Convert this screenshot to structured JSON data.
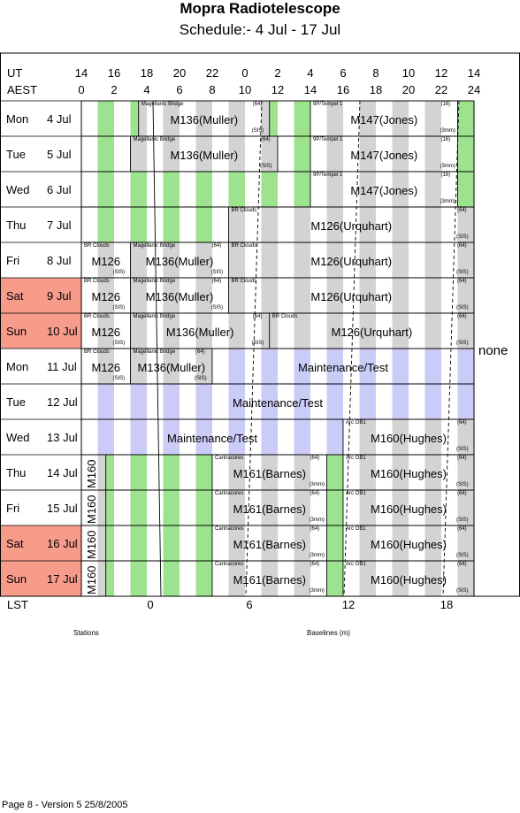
{
  "title": "Mopra Radiotelescope",
  "subtitle": "Schedule:- 4  Jul - 17 Jul",
  "ut_label": "UT",
  "aest_label": "AEST",
  "ut_ticks": [
    "14",
    "16",
    "18",
    "20",
    "22",
    "0",
    "2",
    "4",
    "6",
    "8",
    "10",
    "12",
    "14"
  ],
  "aest_ticks": [
    "0",
    "2",
    "4",
    "6",
    "8",
    "10",
    "12",
    "14",
    "16",
    "18",
    "20",
    "22",
    "24"
  ],
  "days": [
    {
      "name": "Mon",
      "date": "4  Jul",
      "weekend": false
    },
    {
      "name": "Tue",
      "date": "5  Jul",
      "weekend": false
    },
    {
      "name": "Wed",
      "date": "6  Jul",
      "weekend": false
    },
    {
      "name": "Thu",
      "date": "7  Jul",
      "weekend": false
    },
    {
      "name": "Fri",
      "date": "8  Jul",
      "weekend": false
    },
    {
      "name": "Sat",
      "date": "9  Jul",
      "weekend": true
    },
    {
      "name": "Sun",
      "date": "10 Jul",
      "weekend": true
    },
    {
      "name": "Mon",
      "date": "11 Jul",
      "weekend": false
    },
    {
      "name": "Tue",
      "date": "12 Jul",
      "weekend": false
    },
    {
      "name": "Wed",
      "date": "13 Jul",
      "weekend": false
    },
    {
      "name": "Thu",
      "date": "14 Jul",
      "weekend": false
    },
    {
      "name": "Fri",
      "date": "15 Jul",
      "weekend": false
    },
    {
      "name": "Sat",
      "date": "16 Jul",
      "weekend": true
    },
    {
      "name": "Sun",
      "date": "17 Jul",
      "weekend": true
    }
  ],
  "blocks": [
    {
      "row": 0,
      "start": 0,
      "end": 3.5,
      "type": "green",
      "label": "",
      "source": "",
      "tag": "",
      "rx": ""
    },
    {
      "row": 0,
      "start": 3.5,
      "end": 11.5,
      "type": "grey",
      "label": "M136(Muller)",
      "source": "Magellanic Bridge",
      "tag": "(64)",
      "rx": "(SIS)"
    },
    {
      "row": 0,
      "start": 11.5,
      "end": 14,
      "type": "green",
      "label": "",
      "source": "",
      "tag": "",
      "rx": ""
    },
    {
      "row": 0,
      "start": 14,
      "end": 23,
      "type": "grey",
      "label": "M147(Jones)",
      "source": "9P/Tempel 1",
      "tag": "(16)",
      "rx": "(3mm)"
    },
    {
      "row": 0,
      "start": 23,
      "end": 24,
      "type": "green",
      "label": "",
      "source": "",
      "tag": "",
      "rx": ""
    },
    {
      "row": 1,
      "start": 0,
      "end": 3,
      "type": "green",
      "label": "",
      "source": "",
      "tag": "",
      "rx": ""
    },
    {
      "row": 1,
      "start": 3,
      "end": 12,
      "type": "grey",
      "label": "M136(Muller)",
      "source": "Magellanic Bridge",
      "tag": "(64)",
      "rx": "(SIS)"
    },
    {
      "row": 1,
      "start": 12,
      "end": 14,
      "type": "green",
      "label": "",
      "source": "",
      "tag": "",
      "rx": ""
    },
    {
      "row": 1,
      "start": 14,
      "end": 23,
      "type": "grey",
      "label": "M147(Jones)",
      "source": "9P/Tempel 1",
      "tag": "(16)",
      "rx": "(3mm)"
    },
    {
      "row": 1,
      "start": 23,
      "end": 24,
      "type": "green",
      "label": "",
      "source": "",
      "tag": "",
      "rx": ""
    },
    {
      "row": 2,
      "start": 0,
      "end": 14,
      "type": "green",
      "label": "",
      "source": "",
      "tag": "",
      "rx": ""
    },
    {
      "row": 2,
      "start": 14,
      "end": 23,
      "type": "grey",
      "label": "M147(Jones)",
      "source": "9P/Tempel 1",
      "tag": "(16)",
      "rx": "(3mm)"
    },
    {
      "row": 2,
      "start": 23,
      "end": 24,
      "type": "green",
      "label": "",
      "source": "",
      "tag": "",
      "rx": ""
    },
    {
      "row": 3,
      "start": 0,
      "end": 9,
      "type": "green",
      "label": "",
      "source": "",
      "tag": "",
      "rx": ""
    },
    {
      "row": 3,
      "start": 9,
      "end": 24,
      "type": "grey",
      "label": "M126(Urquhart)",
      "source": "BR Clouds",
      "tag": "(64)",
      "rx": "(SIS)"
    },
    {
      "row": 4,
      "start": 0,
      "end": 3,
      "type": "grey",
      "label": "M126",
      "source": "BR Clouds",
      "tag": "",
      "rx": "(SIS)"
    },
    {
      "row": 4,
      "start": 3,
      "end": 9,
      "type": "grey",
      "label": "M136(Muller)",
      "source": "Magellanic Bridge",
      "tag": "(64)",
      "rx": "(SIS)"
    },
    {
      "row": 4,
      "start": 9,
      "end": 24,
      "type": "grey",
      "label": "M126(Urquhart)",
      "source": "BR Clouds",
      "tag": "(64)",
      "rx": "(SIS)"
    },
    {
      "row": 5,
      "start": 0,
      "end": 3,
      "type": "grey",
      "label": "M126",
      "source": "BR Clouds",
      "tag": "",
      "rx": "(SIS)"
    },
    {
      "row": 5,
      "start": 3,
      "end": 9,
      "type": "grey",
      "label": "M136(Muller)",
      "source": "Magellanic Bridge",
      "tag": "(64)",
      "rx": "(SIS)"
    },
    {
      "row": 5,
      "start": 9,
      "end": 24,
      "type": "grey",
      "label": "M126(Urquhart)",
      "source": "BR Clouds",
      "tag": "(64)",
      "rx": "(SIS)"
    },
    {
      "row": 6,
      "start": 0,
      "end": 3,
      "type": "grey",
      "label": "M126",
      "source": "BR Clouds",
      "tag": "",
      "rx": "(SIS)"
    },
    {
      "row": 6,
      "start": 3,
      "end": 11.5,
      "type": "grey",
      "label": "M136(Muller)",
      "source": "Magellanic Bridge",
      "tag": "(64)",
      "rx": "(SIS)"
    },
    {
      "row": 6,
      "start": 11.5,
      "end": 24,
      "type": "grey",
      "label": "M126(Urquhart)",
      "source": "BR Clouds",
      "tag": "(64)",
      "rx": "(SIS)"
    },
    {
      "row": 7,
      "start": 0,
      "end": 3,
      "type": "grey",
      "label": "M126",
      "source": "BR Clouds",
      "tag": "",
      "rx": "(SIS)"
    },
    {
      "row": 7,
      "start": 3,
      "end": 8,
      "type": "grey",
      "label": "M136(Muller)",
      "source": "Magellanic Bridge",
      "tag": "(64)",
      "rx": "(SIS)"
    },
    {
      "row": 7,
      "start": 8,
      "end": 24,
      "type": "blue",
      "label": "Maintenance/Test",
      "source": "",
      "tag": "",
      "rx": ""
    },
    {
      "row": 8,
      "start": 0,
      "end": 24,
      "type": "blue",
      "label": "Maintenance/Test",
      "source": "",
      "tag": "",
      "rx": ""
    },
    {
      "row": 9,
      "start": 0,
      "end": 16,
      "type": "blue",
      "label": "Maintenance/Test",
      "source": "",
      "tag": "",
      "rx": ""
    },
    {
      "row": 9,
      "start": 16,
      "end": 24,
      "type": "grey",
      "label": "M160(Hughes)",
      "source": "Arc OB1",
      "tag": "(64)",
      "rx": "(SIS)"
    },
    {
      "row": 10,
      "start": 0,
      "end": 1.5,
      "type": "grey",
      "label": "M160",
      "source": "",
      "tag": "",
      "rx": "",
      "vertical": true
    },
    {
      "row": 10,
      "start": 1.5,
      "end": 8,
      "type": "green",
      "label": "",
      "source": "",
      "tag": "",
      "rx": ""
    },
    {
      "row": 10,
      "start": 8,
      "end": 15,
      "type": "grey",
      "label": "M161(Barnes)",
      "source": "Carinacores",
      "tag": "(64)",
      "rx": "(3mm)"
    },
    {
      "row": 10,
      "start": 15,
      "end": 16,
      "type": "green",
      "label": "",
      "source": "",
      "tag": "",
      "rx": ""
    },
    {
      "row": 10,
      "start": 16,
      "end": 24,
      "type": "grey",
      "label": "M160(Hughes)",
      "source": "Arc OB1",
      "tag": "(64)",
      "rx": "(SIS)"
    },
    {
      "row": 11,
      "start": 0,
      "end": 1.5,
      "type": "grey",
      "label": "M160",
      "source": "",
      "tag": "",
      "rx": "",
      "vertical": true
    },
    {
      "row": 11,
      "start": 1.5,
      "end": 8,
      "type": "green",
      "label": "",
      "source": "",
      "tag": "",
      "rx": ""
    },
    {
      "row": 11,
      "start": 8,
      "end": 15,
      "type": "grey",
      "label": "M161(Barnes)",
      "source": "Carinacores",
      "tag": "(64)",
      "rx": "(3mm)"
    },
    {
      "row": 11,
      "start": 15,
      "end": 16,
      "type": "green",
      "label": "",
      "source": "",
      "tag": "",
      "rx": ""
    },
    {
      "row": 11,
      "start": 16,
      "end": 24,
      "type": "grey",
      "label": "M160(Hughes)",
      "source": "Arc OB1",
      "tag": "(64)",
      "rx": "(SIS)"
    },
    {
      "row": 12,
      "start": 0,
      "end": 1.5,
      "type": "grey",
      "label": "M160",
      "source": "",
      "tag": "",
      "rx": "",
      "vertical": true
    },
    {
      "row": 12,
      "start": 1.5,
      "end": 8,
      "type": "green",
      "label": "",
      "source": "",
      "tag": "",
      "rx": ""
    },
    {
      "row": 12,
      "start": 8,
      "end": 15,
      "type": "grey",
      "label": "M161(Barnes)",
      "source": "Carinacores",
      "tag": "(64)",
      "rx": "(3mm)"
    },
    {
      "row": 12,
      "start": 15,
      "end": 16,
      "type": "green",
      "label": "",
      "source": "",
      "tag": "",
      "rx": ""
    },
    {
      "row": 12,
      "start": 16,
      "end": 24,
      "type": "grey",
      "label": "M160(Hughes)",
      "source": "Arc OB1",
      "tag": "(64)",
      "rx": "(SIS)"
    },
    {
      "row": 13,
      "start": 0,
      "end": 1.5,
      "type": "grey",
      "label": "M160",
      "source": "",
      "tag": "",
      "rx": "",
      "vertical": true
    },
    {
      "row": 13,
      "start": 1.5,
      "end": 8,
      "type": "green",
      "label": "",
      "source": "",
      "tag": "",
      "rx": ""
    },
    {
      "row": 13,
      "start": 8,
      "end": 15,
      "type": "grey",
      "label": "M161(Barnes)",
      "source": "Carinacores",
      "tag": "(64)",
      "rx": "(3mm)"
    },
    {
      "row": 13,
      "start": 15,
      "end": 16,
      "type": "green",
      "label": "",
      "source": "",
      "tag": "",
      "rx": ""
    },
    {
      "row": 13,
      "start": 16,
      "end": 24,
      "type": "grey",
      "label": "M160(Hughes)",
      "source": "Arc OB1",
      "tag": "(64)",
      "rx": "(SIS)"
    }
  ],
  "side_note": "none",
  "lst_label": "LST",
  "lst_ticks": [
    "0",
    "6",
    "12",
    "18"
  ],
  "stations_label": "Stations",
  "baselines_label": "Baselines (m)",
  "footer": "Page 8 - Version 5  25/8/2005",
  "colors": {
    "green": "#9de38f",
    "grey": "#d3d3d3",
    "blue": "#cbcbf7",
    "weekend": "#f79b8b",
    "white": "#ffffff"
  }
}
